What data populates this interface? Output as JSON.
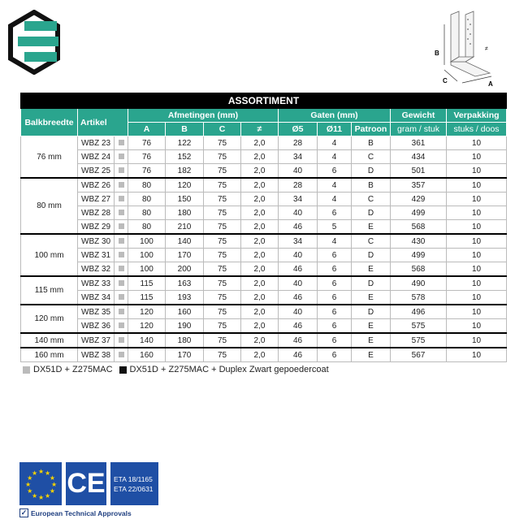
{
  "title": "ASSORTIMENT",
  "headers": {
    "balkbreedte": "Balkbreedte",
    "artikel": "Artikel",
    "afmetingen": "Afmetingen (mm)",
    "gaten": "Gaten (mm)",
    "gewicht": "Gewicht",
    "gewicht_unit": "gram / stuk",
    "verpakking": "Verpakking",
    "verpakking_unit": "stuks / doos",
    "A": "A",
    "B": "B",
    "C": "C",
    "t": "≠",
    "d5": "Ø5",
    "d11": "Ø11",
    "patroon": "Patroon"
  },
  "groups": [
    {
      "width": "76 mm",
      "rows": [
        [
          "WBZ 23",
          "76",
          "122",
          "75",
          "2,0",
          "28",
          "4",
          "B",
          "361",
          "10"
        ],
        [
          "WBZ 24",
          "76",
          "152",
          "75",
          "2,0",
          "34",
          "4",
          "C",
          "434",
          "10"
        ],
        [
          "WBZ 25",
          "76",
          "182",
          "75",
          "2,0",
          "40",
          "6",
          "D",
          "501",
          "10"
        ]
      ]
    },
    {
      "width": "80 mm",
      "rows": [
        [
          "WBZ 26",
          "80",
          "120",
          "75",
          "2,0",
          "28",
          "4",
          "B",
          "357",
          "10"
        ],
        [
          "WBZ 27",
          "80",
          "150",
          "75",
          "2,0",
          "34",
          "4",
          "C",
          "429",
          "10"
        ],
        [
          "WBZ 28",
          "80",
          "180",
          "75",
          "2,0",
          "40",
          "6",
          "D",
          "499",
          "10"
        ],
        [
          "WBZ 29",
          "80",
          "210",
          "75",
          "2,0",
          "46",
          "5",
          "E",
          "568",
          "10"
        ]
      ]
    },
    {
      "width": "100 mm",
      "rows": [
        [
          "WBZ 30",
          "100",
          "140",
          "75",
          "2,0",
          "34",
          "4",
          "C",
          "430",
          "10"
        ],
        [
          "WBZ 31",
          "100",
          "170",
          "75",
          "2,0",
          "40",
          "6",
          "D",
          "499",
          "10"
        ],
        [
          "WBZ 32",
          "100",
          "200",
          "75",
          "2,0",
          "46",
          "6",
          "E",
          "568",
          "10"
        ]
      ]
    },
    {
      "width": "115 mm",
      "rows": [
        [
          "WBZ 33",
          "115",
          "163",
          "75",
          "2,0",
          "40",
          "6",
          "D",
          "490",
          "10"
        ],
        [
          "WBZ 34",
          "115",
          "193",
          "75",
          "2,0",
          "46",
          "6",
          "E",
          "578",
          "10"
        ]
      ]
    },
    {
      "width": "120 mm",
      "rows": [
        [
          "WBZ 35",
          "120",
          "160",
          "75",
          "2,0",
          "40",
          "6",
          "D",
          "496",
          "10"
        ],
        [
          "WBZ 36",
          "120",
          "190",
          "75",
          "2,0",
          "46",
          "6",
          "E",
          "575",
          "10"
        ]
      ]
    },
    {
      "width": "140 mm",
      "rows": [
        [
          "WBZ 37",
          "140",
          "180",
          "75",
          "2,0",
          "46",
          "6",
          "E",
          "575",
          "10"
        ]
      ]
    },
    {
      "width": "160 mm",
      "rows": [
        [
          "WBZ 38",
          "160",
          "170",
          "75",
          "2,0",
          "46",
          "6",
          "E",
          "567",
          "10"
        ]
      ]
    }
  ],
  "legend": [
    "DX51D + Z275MAC",
    "DX51D + Z275MAC + Duplex Zwart gepoedercoat"
  ],
  "diagram_labels": {
    "a": "A",
    "b": "B",
    "c": "C",
    "t": "≠"
  },
  "eta": [
    "ETA 18/1165",
    "ETA 22/0631"
  ],
  "eta_caption": "European Technical Approvals",
  "colors": {
    "teal": "#2aa58e",
    "blue": "#1f4fa5",
    "swatch_grey": "#bbbbbb"
  }
}
